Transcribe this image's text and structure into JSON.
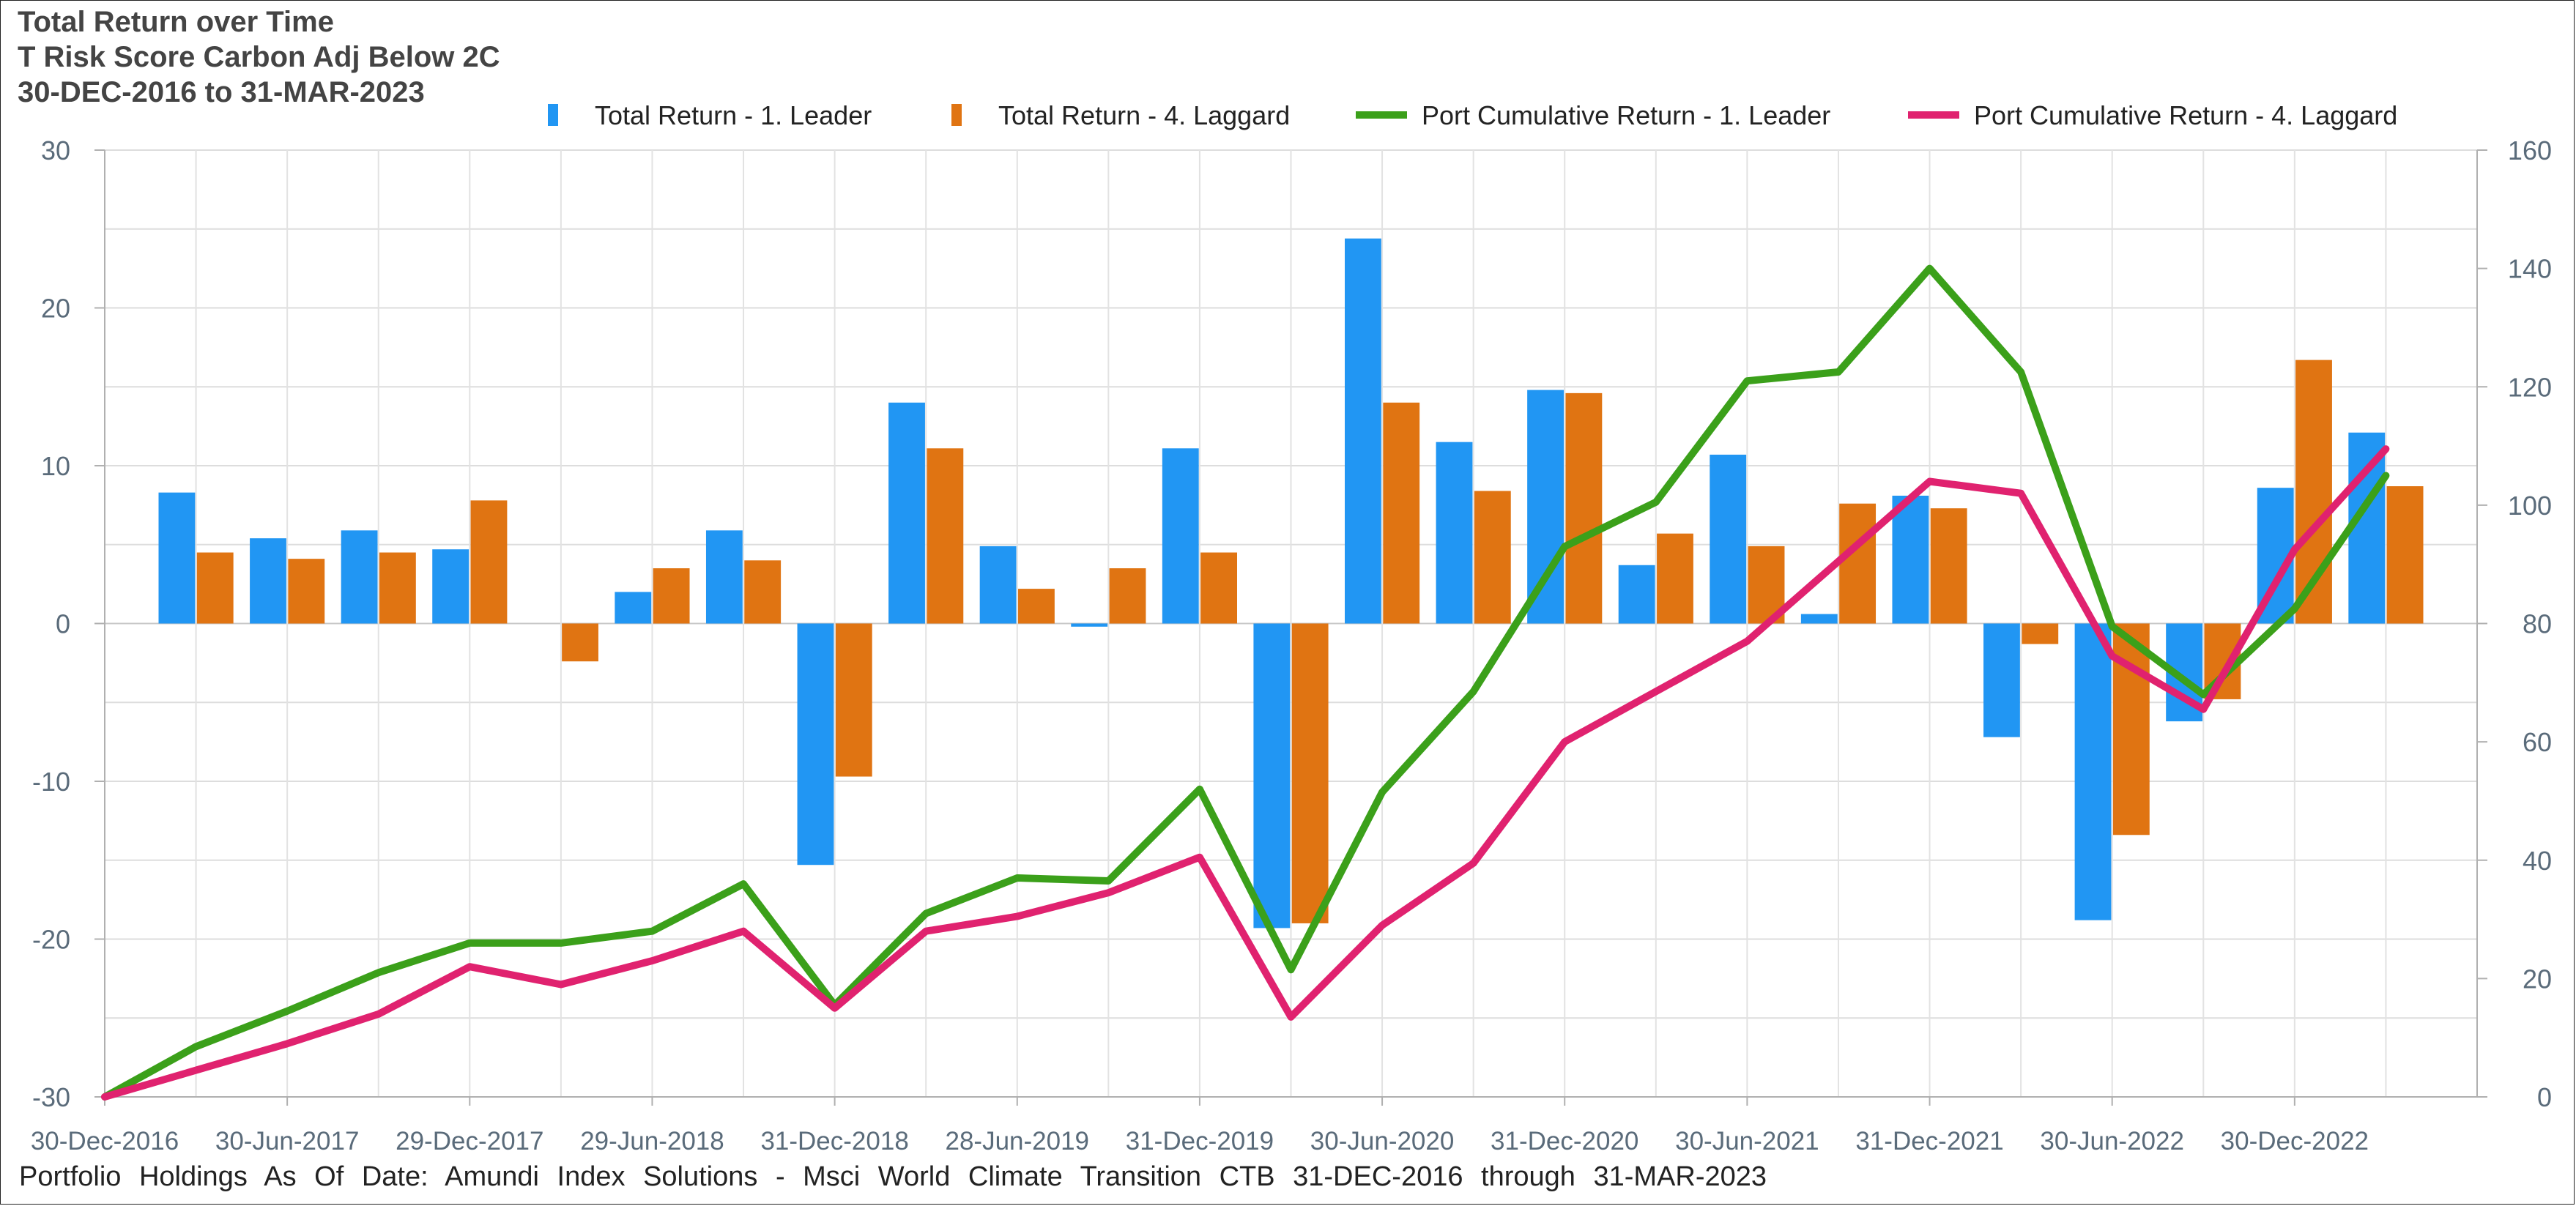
{
  "chart_data": {
    "type": "bar+line",
    "title": "Total Return over Time",
    "subtitle": "T Risk Score Carbon Adj Below 2C",
    "date_range": "30-DEC-2016 to 31-MAR-2023",
    "footer": "Portfolio Holdings As Of Date: Amundi Index Solutions - Msci World Climate Transition CTB 31-DEC-2016 through 31-MAR-2023",
    "legend_position": "top",
    "x_tick_labels": [
      "30-Dec-2016",
      "30-Jun-2017",
      "29-Dec-2017",
      "29-Jun-2018",
      "31-Dec-2018",
      "28-Jun-2019",
      "31-Dec-2019",
      "30-Jun-2020",
      "31-Dec-2020",
      "30-Jun-2021",
      "31-Dec-2021",
      "30-Jun-2022",
      "30-Dec-2022"
    ],
    "periods": 26,
    "y_left": {
      "min": -30,
      "max": 30,
      "ticks": [
        "30",
        "20",
        "10",
        "0",
        "-10",
        "-20",
        "-30"
      ]
    },
    "y_right": {
      "min": 0,
      "max": 160,
      "ticks": [
        "160",
        "140",
        "120",
        "100",
        "80",
        "60",
        "40",
        "20",
        "0"
      ]
    },
    "bar_series": [
      {
        "name": "Total Return - 1. Leader",
        "color": "#2196F3",
        "values": [
          8.3,
          5.4,
          5.9,
          4.7,
          0,
          2.0,
          5.9,
          -15.3,
          14.0,
          4.9,
          -0.2,
          11.1,
          -19.3,
          24.4,
          11.5,
          14.8,
          3.7,
          10.7,
          0.6,
          8.1,
          -7.2,
          -18.8,
          -6.2,
          8.6,
          12.1
        ]
      },
      {
        "name": "Total Return - 4. Laggard",
        "color": "#E07412",
        "values": [
          4.5,
          4.1,
          4.5,
          7.8,
          -2.4,
          3.5,
          4.0,
          -9.7,
          11.1,
          2.2,
          3.5,
          4.5,
          -19.0,
          14.0,
          8.4,
          14.6,
          5.7,
          4.9,
          7.6,
          7.3,
          -1.3,
          -13.4,
          -4.8,
          16.7,
          8.7
        ]
      }
    ],
    "line_series": [
      {
        "name": "Port Cumulative Return - 1. Leader",
        "color": "#3BA01A",
        "values": [
          0,
          8.5,
          14.5,
          21.0,
          26.0,
          26.0,
          28.0,
          36.0,
          15.5,
          31.0,
          37.0,
          36.5,
          52.0,
          21.5,
          51.5,
          68.5,
          93.0,
          100.5,
          121.0,
          122.5,
          140.0,
          122.5,
          79.5,
          68.0,
          82.5,
          105.0
        ]
      },
      {
        "name": "Port Cumulative Return - 4. Laggard",
        "color": "#E0226F",
        "values": [
          0,
          4.5,
          9.0,
          14.0,
          22.0,
          19.0,
          23.0,
          28.0,
          15.0,
          28.0,
          30.5,
          34.5,
          40.5,
          13.5,
          29.0,
          39.5,
          60.0,
          68.5,
          77.0,
          90.5,
          104.0,
          102.0,
          74.5,
          65.5,
          92.5,
          109.5
        ]
      }
    ]
  }
}
